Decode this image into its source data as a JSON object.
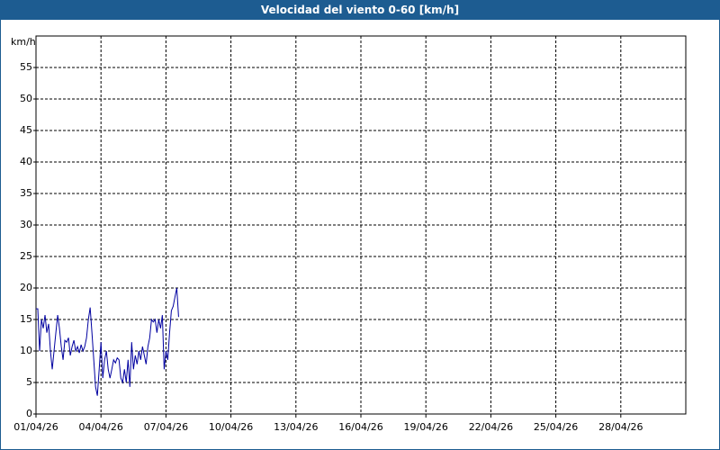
{
  "chart_data": {
    "type": "line",
    "title": "Velocidad del viento 0-60 [km/h]",
    "y_label": "km/h",
    "x": [
      1,
      1.083,
      1.167,
      1.25,
      1.333,
      1.417,
      1.5,
      1.583,
      1.667,
      1.75,
      1.833,
      1.917,
      2,
      2.083,
      2.167,
      2.25,
      2.333,
      2.417,
      2.5,
      2.583,
      2.667,
      2.75,
      2.833,
      2.917,
      3,
      3.083,
      3.167,
      3.25,
      3.333,
      3.417,
      3.5,
      3.583,
      3.667,
      3.75,
      3.833,
      3.917,
      4,
      4.083,
      4.167,
      4.25,
      4.333,
      4.417,
      4.5,
      4.583,
      4.667,
      4.75,
      4.833,
      4.917,
      5,
      5.083,
      5.167,
      5.25,
      5.333,
      5.417,
      5.5,
      5.583,
      5.667,
      5.75,
      5.833,
      5.917,
      6,
      6.083,
      6.167,
      6.25,
      6.333,
      6.417,
      6.5,
      6.583,
      6.667,
      6.75,
      6.833,
      6.917,
      7,
      7.083,
      7.167,
      7.25,
      7.333,
      7.417,
      7.5,
      7.583
    ],
    "series": [
      {
        "color": "#0000a0",
        "values": [
          16.7,
          16.7,
          10,
          15,
          13.6,
          15.7,
          12.9,
          14.3,
          10,
          7.1,
          10,
          12.9,
          15.7,
          13.6,
          10.7,
          8.6,
          11.7,
          11.4,
          12.1,
          9.3,
          10.7,
          11.7,
          10,
          10.7,
          9.7,
          11,
          10,
          10.7,
          12.1,
          15,
          16.9,
          12.9,
          8.6,
          4.3,
          2.9,
          7.1,
          11.4,
          5.7,
          8.6,
          10,
          7.1,
          5.7,
          7.1,
          8.6,
          8.1,
          8.9,
          8.6,
          5.7,
          5,
          7.1,
          5,
          8.6,
          4.3,
          11.4,
          7.1,
          9.3,
          7.9,
          10,
          8.6,
          10.7,
          9.3,
          7.9,
          10.7,
          12.1,
          15,
          14.6,
          15,
          12.9,
          15,
          13.6,
          15.7,
          7.1,
          10,
          8.6,
          12.9,
          16.4,
          17.1,
          18.6,
          20,
          15.4
        ]
      }
    ],
    "xlim": [
      1,
      31
    ],
    "xticks": [
      {
        "value": 1,
        "label": "01/04/26"
      },
      {
        "value": 4,
        "label": "04/04/26"
      },
      {
        "value": 7,
        "label": "07/04/26"
      },
      {
        "value": 10,
        "label": "10/04/26"
      },
      {
        "value": 13,
        "label": "13/04/26"
      },
      {
        "value": 16,
        "label": "16/04/26"
      },
      {
        "value": 19,
        "label": "19/04/26"
      },
      {
        "value": 22,
        "label": "22/04/26"
      },
      {
        "value": 25,
        "label": "25/04/26"
      },
      {
        "value": 28,
        "label": "28/04/26"
      }
    ],
    "ylim": [
      0,
      60
    ],
    "yticks": [
      0,
      5,
      10,
      15,
      20,
      25,
      30,
      35,
      40,
      45,
      50,
      55
    ],
    "grid": true
  }
}
